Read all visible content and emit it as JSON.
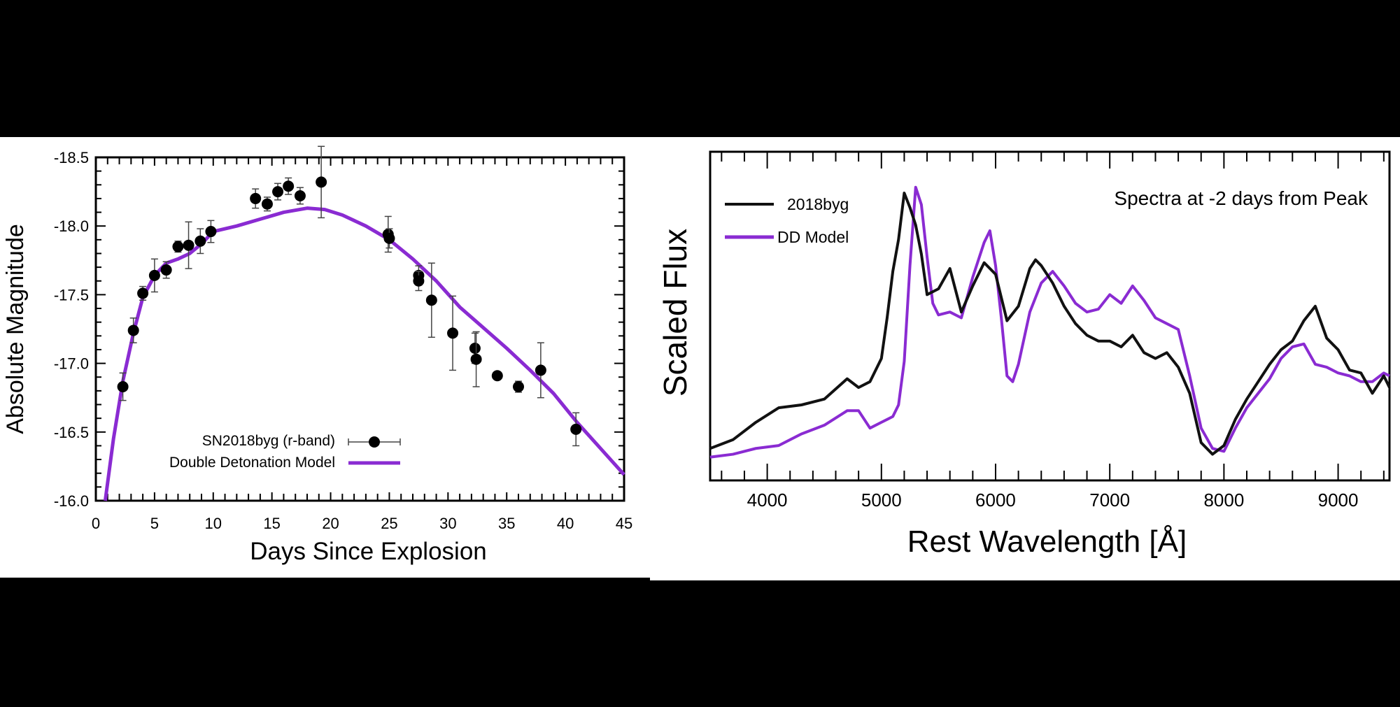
{
  "chart_data": [
    {
      "type": "scatter",
      "xlabel": "Days Since Explosion",
      "ylabel": "Absolute Magnitude",
      "xlim": [
        0,
        45
      ],
      "ylim": [
        -16.0,
        -18.5
      ],
      "y_inverted": true,
      "x_ticks": [
        0,
        5,
        10,
        15,
        20,
        25,
        30,
        35,
        40,
        45
      ],
      "y_ticks": [
        -16.0,
        -16.5,
        -17.0,
        -17.5,
        -18.0,
        -18.5
      ],
      "x_tick_labels": [
        "0",
        "5",
        "10",
        "15",
        "20",
        "25",
        "30",
        "35",
        "40",
        "45"
      ],
      "y_tick_labels": [
        "-16.0",
        "-16.5",
        "-17.0",
        "-17.5",
        "-18.0",
        "-18.5"
      ],
      "legend_position": "bottom-right",
      "series": [
        {
          "name": "SN2018byg (r-band)",
          "kind": "points_with_errorbars",
          "color": "#000000",
          "x": [
            2.3,
            3.2,
            4.0,
            5.0,
            6.0,
            7.0,
            7.9,
            8.9,
            9.8,
            13.6,
            14.6,
            15.5,
            16.4,
            17.4,
            19.2,
            24.9,
            25.0,
            27.5,
            27.5,
            28.6,
            30.4,
            32.3,
            32.4,
            34.2,
            36.0,
            37.9,
            40.9
          ],
          "y": [
            -16.83,
            -17.24,
            -17.51,
            -17.64,
            -17.68,
            -17.85,
            -17.86,
            -17.89,
            -17.96,
            -18.2,
            -18.16,
            -18.25,
            -18.29,
            -18.22,
            -18.32,
            -17.94,
            -17.91,
            -17.64,
            -17.6,
            -17.46,
            -17.22,
            -17.11,
            -17.03,
            -16.91,
            -16.83,
            -16.95,
            -16.52
          ],
          "err": [
            0.1,
            0.09,
            0.05,
            0.12,
            0.06,
            0.04,
            0.17,
            0.09,
            0.08,
            0.07,
            0.05,
            0.06,
            0.06,
            0.06,
            0.26,
            0.13,
            0.07,
            0.07,
            0.07,
            0.27,
            0.27,
            0.11,
            0.2,
            0.02,
            0.04,
            0.2,
            0.12
          ]
        },
        {
          "name": "Double Detonation Model",
          "kind": "line",
          "color": "#8a2bd2",
          "x": [
            0.8,
            1.5,
            2.3,
            3.2,
            4.0,
            5.0,
            6.0,
            7.0,
            8.0,
            9.0,
            10.0,
            12.0,
            14.0,
            16.0,
            18.0,
            19.5,
            21.0,
            23.0,
            25.0,
            27.0,
            29.0,
            31.0,
            33.0,
            35.0,
            37.0,
            39.0,
            41.0,
            43.0,
            45.0
          ],
          "y": [
            -16.0,
            -16.45,
            -16.87,
            -17.22,
            -17.48,
            -17.64,
            -17.73,
            -17.76,
            -17.8,
            -17.87,
            -17.96,
            -18.0,
            -18.05,
            -18.1,
            -18.13,
            -18.12,
            -18.08,
            -18.0,
            -17.9,
            -17.76,
            -17.6,
            -17.41,
            -17.26,
            -17.11,
            -16.95,
            -16.78,
            -16.57,
            -16.38,
            -16.19
          ]
        }
      ]
    },
    {
      "type": "line",
      "title": "Spectra at -2 days from Peak",
      "xlabel": "Rest Wavelength [Å]",
      "ylabel": "Scaled Flux",
      "xlim": [
        3500,
        9450
      ],
      "ylim": [
        0,
        1
      ],
      "x_ticks": [
        4000,
        5000,
        6000,
        7000,
        8000,
        9000
      ],
      "x_tick_labels": [
        "4000",
        "5000",
        "6000",
        "7000",
        "8000",
        "9000"
      ],
      "y_tick_labels_shown": false,
      "legend_position": "top-left",
      "series": [
        {
          "name": "2018byg",
          "color": "#111111",
          "x": [
            3500,
            3700,
            3900,
            4100,
            4300,
            4500,
            4700,
            4800,
            4900,
            5000,
            5050,
            5100,
            5150,
            5200,
            5250,
            5300,
            5350,
            5400,
            5500,
            5600,
            5700,
            5800,
            5900,
            6000,
            6100,
            6200,
            6300,
            6350,
            6400,
            6500,
            6600,
            6700,
            6800,
            6900,
            7000,
            7100,
            7200,
            7300,
            7400,
            7500,
            7600,
            7700,
            7800,
            7900,
            8000,
            8100,
            8200,
            8300,
            8400,
            8500,
            8600,
            8700,
            8800,
            8900,
            9000,
            9100,
            9200,
            9300,
            9400,
            9450
          ],
          "y": [
            0.05,
            0.08,
            0.14,
            0.19,
            0.2,
            0.22,
            0.29,
            0.26,
            0.28,
            0.36,
            0.5,
            0.66,
            0.77,
            0.93,
            0.88,
            0.82,
            0.72,
            0.58,
            0.6,
            0.67,
            0.52,
            0.61,
            0.69,
            0.65,
            0.49,
            0.54,
            0.67,
            0.7,
            0.68,
            0.62,
            0.54,
            0.48,
            0.44,
            0.42,
            0.42,
            0.4,
            0.44,
            0.38,
            0.36,
            0.38,
            0.33,
            0.24,
            0.07,
            0.03,
            0.06,
            0.15,
            0.22,
            0.28,
            0.34,
            0.39,
            0.42,
            0.49,
            0.54,
            0.43,
            0.39,
            0.32,
            0.31,
            0.24,
            0.3,
            0.26
          ]
        },
        {
          "name": "DD Model",
          "color": "#8a2bd2",
          "x": [
            3500,
            3700,
            3900,
            4100,
            4300,
            4500,
            4700,
            4800,
            4900,
            5000,
            5100,
            5150,
            5200,
            5250,
            5300,
            5350,
            5400,
            5450,
            5500,
            5600,
            5700,
            5800,
            5900,
            5950,
            6000,
            6050,
            6100,
            6150,
            6200,
            6300,
            6400,
            6500,
            6600,
            6700,
            6800,
            6900,
            7000,
            7100,
            7200,
            7300,
            7400,
            7500,
            7600,
            7700,
            7800,
            7900,
            8000,
            8100,
            8200,
            8300,
            8400,
            8500,
            8600,
            8700,
            8800,
            8900,
            9000,
            9100,
            9200,
            9300,
            9400,
            9450
          ],
          "y": [
            0.02,
            0.03,
            0.05,
            0.06,
            0.1,
            0.13,
            0.18,
            0.18,
            0.12,
            0.14,
            0.16,
            0.2,
            0.35,
            0.68,
            0.95,
            0.89,
            0.71,
            0.55,
            0.51,
            0.52,
            0.5,
            0.64,
            0.76,
            0.8,
            0.68,
            0.5,
            0.3,
            0.28,
            0.34,
            0.52,
            0.62,
            0.66,
            0.61,
            0.55,
            0.52,
            0.53,
            0.58,
            0.55,
            0.61,
            0.56,
            0.5,
            0.48,
            0.46,
            0.3,
            0.12,
            0.05,
            0.04,
            0.12,
            0.19,
            0.24,
            0.29,
            0.36,
            0.4,
            0.41,
            0.34,
            0.33,
            0.31,
            0.3,
            0.28,
            0.28,
            0.31,
            0.3
          ]
        }
      ]
    }
  ]
}
